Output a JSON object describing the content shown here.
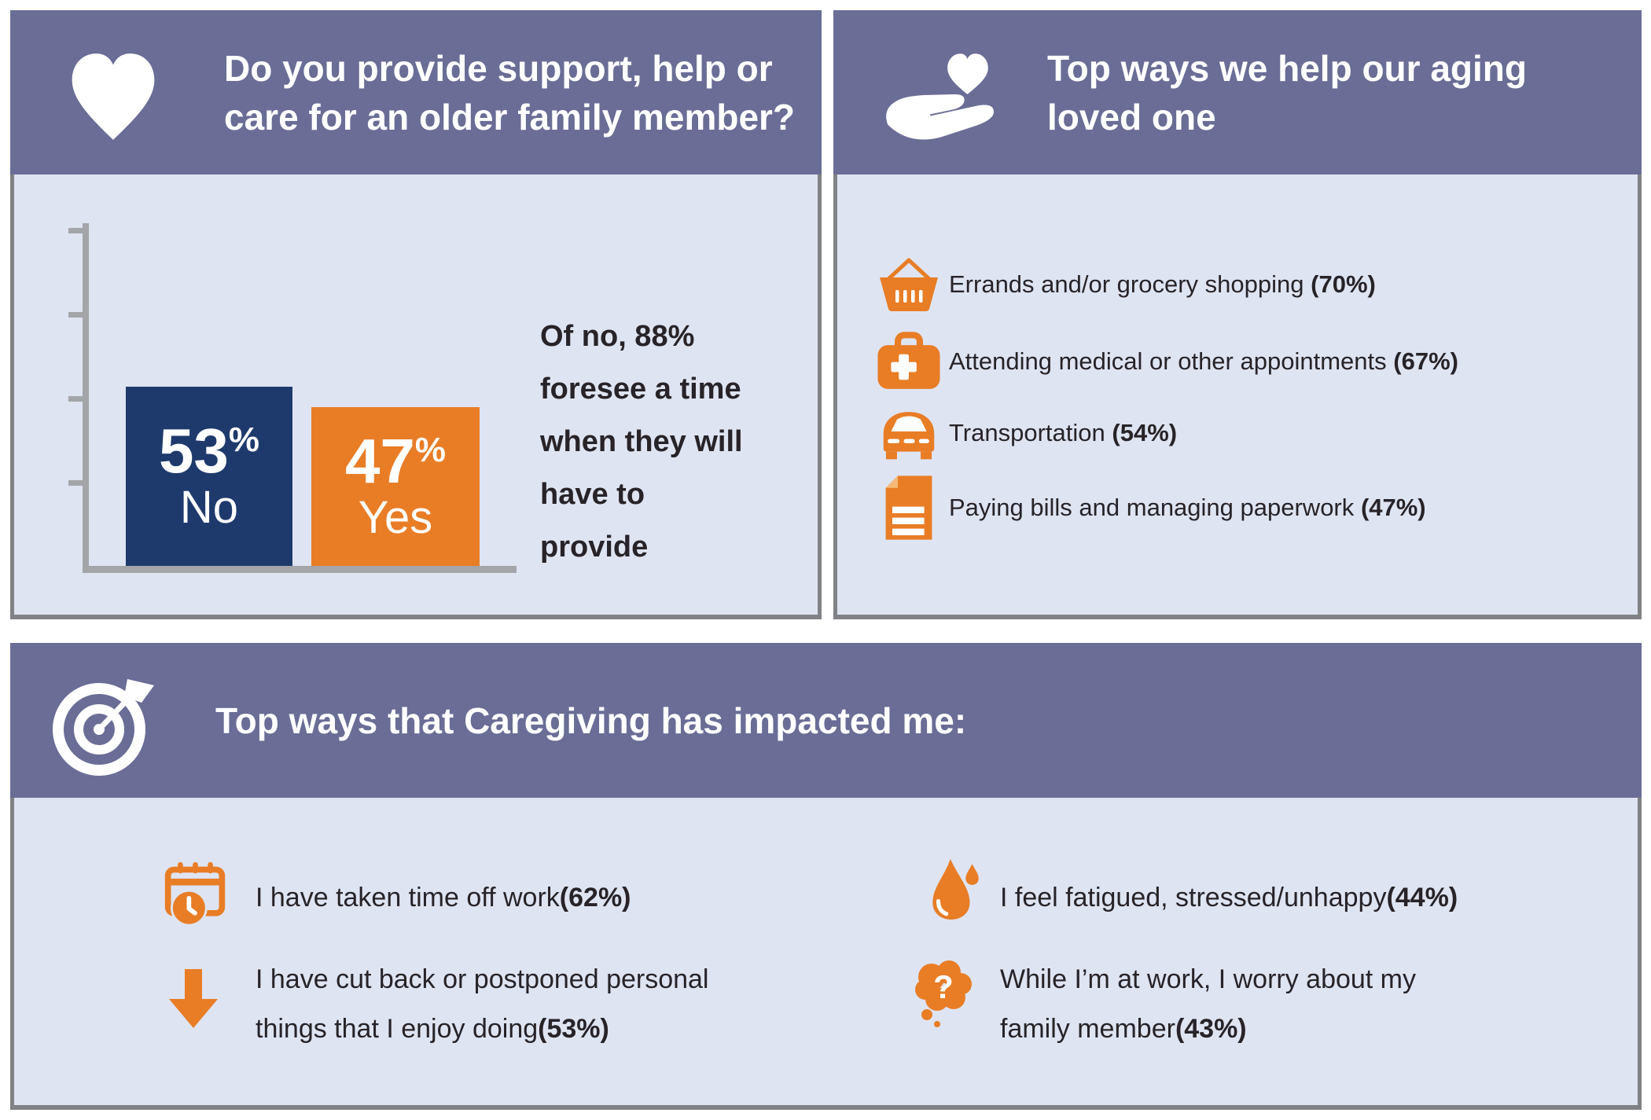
{
  "colors": {
    "purple": "#6a6d96",
    "bg": "#dfe4f2",
    "navy": "#1e3a6d",
    "orange": "#e87d26",
    "ink": "#272328",
    "axis": "#a3a5a8",
    "edge": "#808285",
    "white": "#ffffff",
    "fold": "#f5b877"
  },
  "chart_data": {
    "type": "bar",
    "title": "Do you provide support, help or care for an older family member?",
    "categories": [
      "No",
      "Yes"
    ],
    "values": [
      53,
      47
    ],
    "value_labels": [
      "53",
      "47"
    ],
    "unit": "%",
    "bar_colors": [
      "#1e3a6d",
      "#e87d26"
    ],
    "ylim": [
      0,
      100
    ],
    "y_ticks": [
      25,
      50,
      75,
      100
    ],
    "grid": false,
    "legend": "none",
    "annotation": "Of no, 88% foresee a time when they will have to provide"
  },
  "panel_support": {
    "title_lines": [
      "Do you provide support, help or",
      "care for an older family member?"
    ],
    "icon": "heart-icon",
    "note_lines": [
      "Of no, 88%",
      "foresee a time",
      "when they will",
      "have to provide"
    ]
  },
  "panel_help": {
    "title_lines": [
      "Top ways we help our aging",
      "loved one"
    ],
    "icon": "hand-heart-icon",
    "items": [
      {
        "icon": "shopping-basket-icon",
        "label": "Errands and/or grocery shopping",
        "value": "(70%)"
      },
      {
        "icon": "first-aid-kit-icon",
        "label": "Attending medical or other appointments",
        "value": "(67%)"
      },
      {
        "icon": "car-icon",
        "label": "Transportation",
        "value": "(54%)"
      },
      {
        "icon": "document-icon",
        "label": "Paying bills and managing paperwork",
        "value": "(47%)"
      }
    ]
  },
  "panel_impact": {
    "title": "Top ways that Caregiving has impacted me:",
    "icon": "target-icon",
    "items": [
      {
        "icon": "calendar-clock-icon",
        "label": "I have taken time off work",
        "value": "(62%)"
      },
      {
        "icon": "down-arrow-icon",
        "label": "I have cut back or postponed personal things that I enjoy doing",
        "value": "(53%)"
      },
      {
        "icon": "water-drop-icon",
        "label": "I feel fatigued, stressed/unhappy",
        "value": "(44%)"
      },
      {
        "icon": "thought-bubble-icon",
        "label": "While I’m at work, I worry about my family member",
        "value": "(43%)"
      }
    ]
  }
}
